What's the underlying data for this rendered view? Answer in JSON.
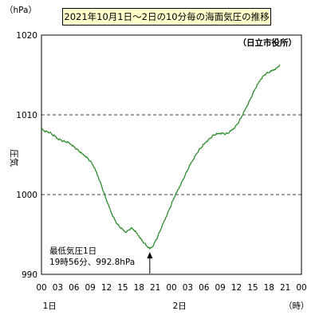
{
  "chart_data": {
    "type": "line",
    "title": "2021年10月1日～2日の10分毎の海面気圧の推移",
    "ylabel": "圧気",
    "y_unit": "（hPa）",
    "x_unit": "（時）",
    "station": "（日立市役所）",
    "ylim": [
      990,
      1020
    ],
    "y_ticks": [
      "990",
      "1000",
      "1010",
      "1020"
    ],
    "y_dashed_grid": [
      1000,
      1010
    ],
    "x_hour_range": [
      0,
      48
    ],
    "x_tick_labels": [
      "00",
      "03",
      "06",
      "09",
      "12",
      "15",
      "18",
      "21",
      "00",
      "03",
      "06",
      "09",
      "12",
      "15",
      "18",
      "21",
      "00"
    ],
    "day_labels": [
      {
        "text": "1日",
        "hour": 1.5
      },
      {
        "text": "2日",
        "hour": 25.5
      }
    ],
    "annotation": {
      "line1": "最低気圧1日",
      "line2": "19時56分、992.8hPa",
      "hour": 20,
      "value": 993.2
    },
    "series": [
      {
        "color": "#2e8b2e",
        "points": [
          [
            0,
            1008.3
          ],
          [
            0.5,
            1008.0
          ],
          [
            1,
            1007.9
          ],
          [
            1.5,
            1007.8
          ],
          [
            2,
            1007.5
          ],
          [
            2.5,
            1007.3
          ],
          [
            3,
            1007.0
          ],
          [
            3.5,
            1006.9
          ],
          [
            4,
            1006.7
          ],
          [
            4.5,
            1006.6
          ],
          [
            5,
            1006.5
          ],
          [
            5.5,
            1006.3
          ],
          [
            6,
            1006.0
          ],
          [
            6.5,
            1005.7
          ],
          [
            7,
            1005.4
          ],
          [
            7.5,
            1005.1
          ],
          [
            8,
            1004.9
          ],
          [
            8.5,
            1004.6
          ],
          [
            9,
            1004.2
          ],
          [
            9.5,
            1003.7
          ],
          [
            10,
            1003.0
          ],
          [
            10.5,
            1002.2
          ],
          [
            11,
            1001.3
          ],
          [
            11.5,
            1000.3
          ],
          [
            12,
            999.3
          ],
          [
            12.5,
            998.4
          ],
          [
            13,
            997.6
          ],
          [
            13.5,
            996.9
          ],
          [
            14,
            996.3
          ],
          [
            14.5,
            995.9
          ],
          [
            15,
            995.6
          ],
          [
            15.5,
            995.3
          ],
          [
            16,
            995.5
          ],
          [
            16.5,
            995.8
          ],
          [
            17,
            995.6
          ],
          [
            17.5,
            995.2
          ],
          [
            18,
            994.8
          ],
          [
            18.5,
            994.3
          ],
          [
            19,
            993.9
          ],
          [
            19.5,
            993.5
          ],
          [
            20,
            993.2
          ],
          [
            20.5,
            993.5
          ],
          [
            21,
            994.1
          ],
          [
            21.5,
            994.8
          ],
          [
            22,
            995.6
          ],
          [
            22.5,
            996.4
          ],
          [
            23,
            997.2
          ],
          [
            23.5,
            998.0
          ],
          [
            24,
            998.8
          ],
          [
            24.5,
            999.6
          ],
          [
            25,
            1000.3
          ],
          [
            25.5,
            1001.0
          ],
          [
            26,
            1001.7
          ],
          [
            26.5,
            1002.4
          ],
          [
            27,
            1003.1
          ],
          [
            27.5,
            1003.8
          ],
          [
            28,
            1004.4
          ],
          [
            28.5,
            1005.0
          ],
          [
            29,
            1005.5
          ],
          [
            29.5,
            1005.9
          ],
          [
            30,
            1006.3
          ],
          [
            30.5,
            1006.7
          ],
          [
            31,
            1007.0
          ],
          [
            31.5,
            1007.3
          ],
          [
            32,
            1007.5
          ],
          [
            32.5,
            1007.6
          ],
          [
            33,
            1007.7
          ],
          [
            33.5,
            1007.7
          ],
          [
            34,
            1007.6
          ],
          [
            34.5,
            1007.7
          ],
          [
            35,
            1008.0
          ],
          [
            35.5,
            1008.3
          ],
          [
            36,
            1008.7
          ],
          [
            36.5,
            1009.2
          ],
          [
            37,
            1009.8
          ],
          [
            37.5,
            1010.5
          ],
          [
            38,
            1011.2
          ],
          [
            38.5,
            1011.9
          ],
          [
            39,
            1012.6
          ],
          [
            39.5,
            1013.3
          ],
          [
            40,
            1013.9
          ],
          [
            40.5,
            1014.5
          ],
          [
            41,
            1014.9
          ],
          [
            41.5,
            1015.2
          ],
          [
            42,
            1015.3
          ],
          [
            42.5,
            1015.5
          ],
          [
            43,
            1015.7
          ],
          [
            43.5,
            1015.9
          ],
          [
            44,
            1016.3
          ]
        ]
      }
    ]
  }
}
